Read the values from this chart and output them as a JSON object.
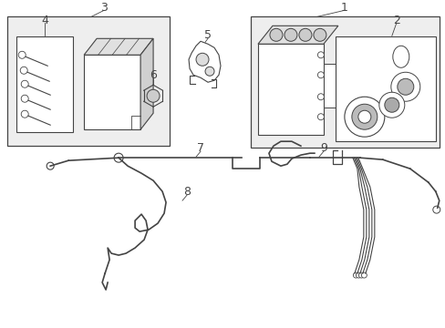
{
  "bg_color": "#ffffff",
  "line_color": "#444444",
  "box_fill": "#eeeeee",
  "label_fontsize": 9
}
